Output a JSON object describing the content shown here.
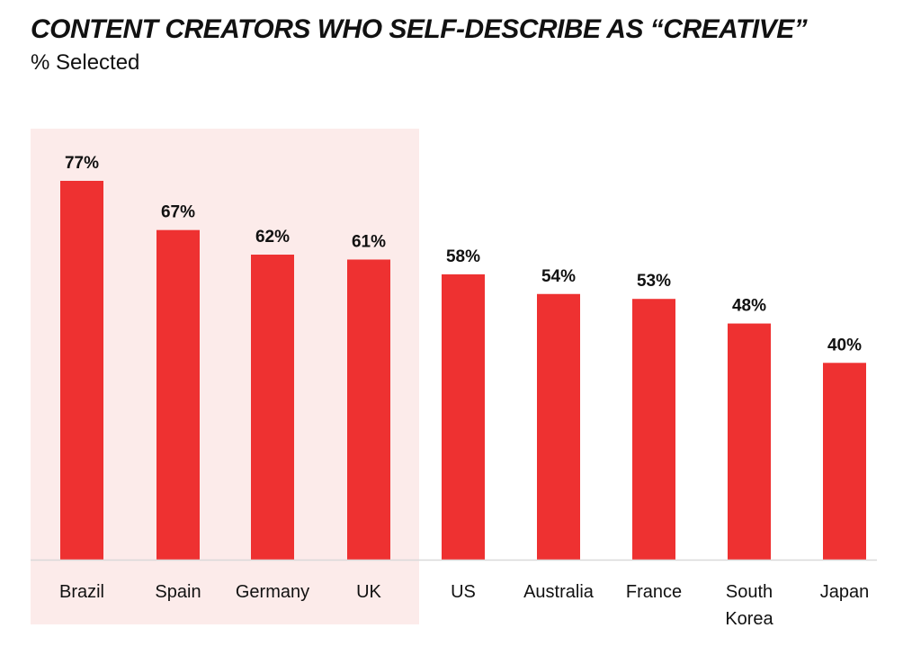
{
  "colors": {
    "bar": "#ee3131",
    "highlight": "#fcebea",
    "axis": "#d9d9d9",
    "text": "#111111"
  },
  "chart_data": {
    "type": "bar",
    "title": "CONTENT CREATORS WHO SELF-DESCRIBE AS “CREATIVE”",
    "subtitle": "% Selected",
    "categories": [
      [
        "Brazil"
      ],
      [
        "Spain"
      ],
      [
        "Germany"
      ],
      [
        "UK"
      ],
      [
        "US"
      ],
      [
        "Australia"
      ],
      [
        "France"
      ],
      [
        "South",
        "Korea"
      ],
      [
        "Japan"
      ]
    ],
    "values": [
      77,
      67,
      62,
      61,
      58,
      54,
      53,
      48,
      40
    ],
    "value_labels": [
      "77%",
      "67%",
      "62%",
      "61%",
      "58%",
      "54%",
      "53%",
      "48%",
      "40%"
    ],
    "unit": "%",
    "ylim": [
      0,
      100
    ],
    "grid": false,
    "highlighted_categories": [
      "Brazil",
      "Spain",
      "Germany",
      "UK"
    ]
  }
}
